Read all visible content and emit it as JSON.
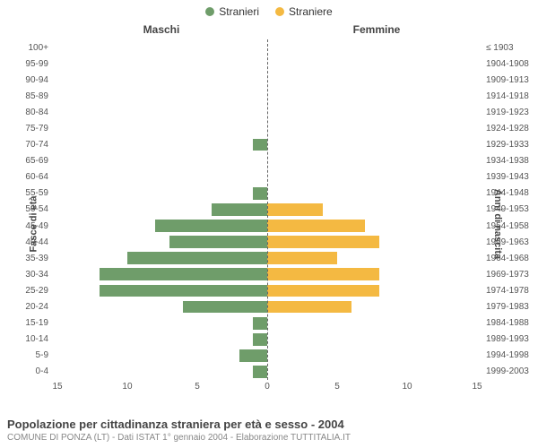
{
  "chart": {
    "type": "population-pyramid",
    "legend": [
      {
        "label": "Stranieri",
        "color": "#6f9d6a"
      },
      {
        "label": "Straniere",
        "color": "#f4b942"
      }
    ],
    "column_left_label": "Maschi",
    "column_right_label": "Femmine",
    "y_left_title": "Fasce di età",
    "y_right_title": "Anni di nascita",
    "xlim": 15,
    "xtick_step": 5,
    "background_color": "#ffffff",
    "center_line_color": "#666666",
    "bar_colors": {
      "male": "#6f9d6a",
      "female": "#f4b942"
    },
    "label_fontsize": 10,
    "axis_title_fontsize": 11,
    "rows": [
      {
        "age": "100+",
        "birth": "≤ 1903",
        "male": 0,
        "female": 0
      },
      {
        "age": "95-99",
        "birth": "1904-1908",
        "male": 0,
        "female": 0
      },
      {
        "age": "90-94",
        "birth": "1909-1913",
        "male": 0,
        "female": 0
      },
      {
        "age": "85-89",
        "birth": "1914-1918",
        "male": 0,
        "female": 0
      },
      {
        "age": "80-84",
        "birth": "1919-1923",
        "male": 0,
        "female": 0
      },
      {
        "age": "75-79",
        "birth": "1924-1928",
        "male": 0,
        "female": 0
      },
      {
        "age": "70-74",
        "birth": "1929-1933",
        "male": 1,
        "female": 0
      },
      {
        "age": "65-69",
        "birth": "1934-1938",
        "male": 0,
        "female": 0
      },
      {
        "age": "60-64",
        "birth": "1939-1943",
        "male": 0,
        "female": 0
      },
      {
        "age": "55-59",
        "birth": "1944-1948",
        "male": 1,
        "female": 0
      },
      {
        "age": "50-54",
        "birth": "1949-1953",
        "male": 4,
        "female": 4
      },
      {
        "age": "45-49",
        "birth": "1954-1958",
        "male": 8,
        "female": 7
      },
      {
        "age": "40-44",
        "birth": "1959-1963",
        "male": 7,
        "female": 8
      },
      {
        "age": "35-39",
        "birth": "1964-1968",
        "male": 10,
        "female": 5
      },
      {
        "age": "30-34",
        "birth": "1969-1973",
        "male": 12,
        "female": 8
      },
      {
        "age": "25-29",
        "birth": "1974-1978",
        "male": 12,
        "female": 8
      },
      {
        "age": "20-24",
        "birth": "1979-1983",
        "male": 6,
        "female": 6
      },
      {
        "age": "15-19",
        "birth": "1984-1988",
        "male": 1,
        "female": 0
      },
      {
        "age": "10-14",
        "birth": "1989-1993",
        "male": 1,
        "female": 0
      },
      {
        "age": "5-9",
        "birth": "1994-1998",
        "male": 2,
        "female": 0
      },
      {
        "age": "0-4",
        "birth": "1999-2003",
        "male": 1,
        "female": 0
      }
    ]
  },
  "footer": {
    "title": "Popolazione per cittadinanza straniera per età e sesso - 2004",
    "subtitle": "COMUNE DI PONZA (LT) - Dati ISTAT 1° gennaio 2004 - Elaborazione TUTTITALIA.IT"
  }
}
